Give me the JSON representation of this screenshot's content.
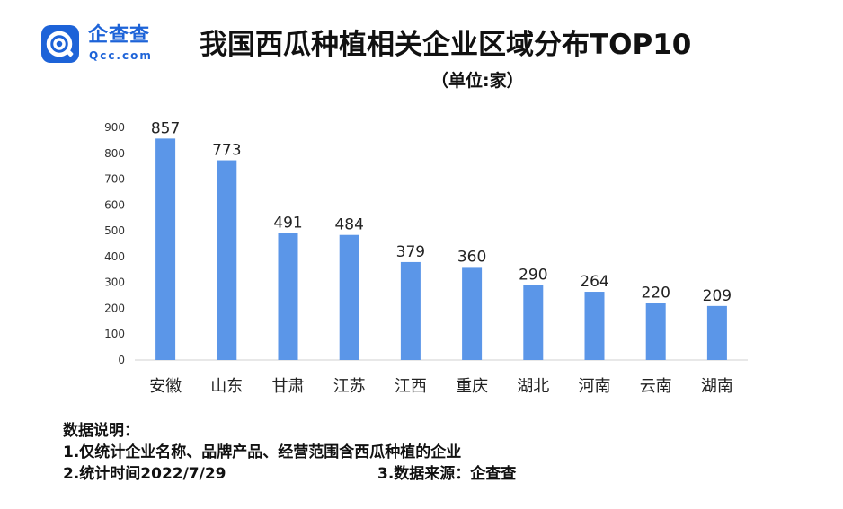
{
  "brand": {
    "name": "企查查",
    "domain": "Qcc.com",
    "color": "#1d63d8"
  },
  "chart_data": {
    "type": "bar",
    "title": "我国西瓜种植相关企业区域分布TOP10",
    "subtitle": "（单位:家）",
    "categories": [
      "安徽",
      "山东",
      "甘肃",
      "江苏",
      "江西",
      "重庆",
      "湖北",
      "河南",
      "云南",
      "湖南"
    ],
    "values": [
      857,
      773,
      491,
      484,
      379,
      360,
      290,
      264,
      220,
      209
    ],
    "ylim": [
      0,
      900
    ],
    "yticks": [
      0,
      100,
      200,
      300,
      400,
      500,
      600,
      700,
      800,
      900
    ],
    "grid": false,
    "bar_color": "#5b96e8",
    "xlabel": "",
    "ylabel": ""
  },
  "notes": {
    "heading": "数据说明：",
    "line1": "1.仅统计企业名称、品牌产品、经营范围含西瓜种植的企业",
    "line2_date": "2.统计时间2022/7/29",
    "line2_source": "3.数据来源：企查查"
  }
}
